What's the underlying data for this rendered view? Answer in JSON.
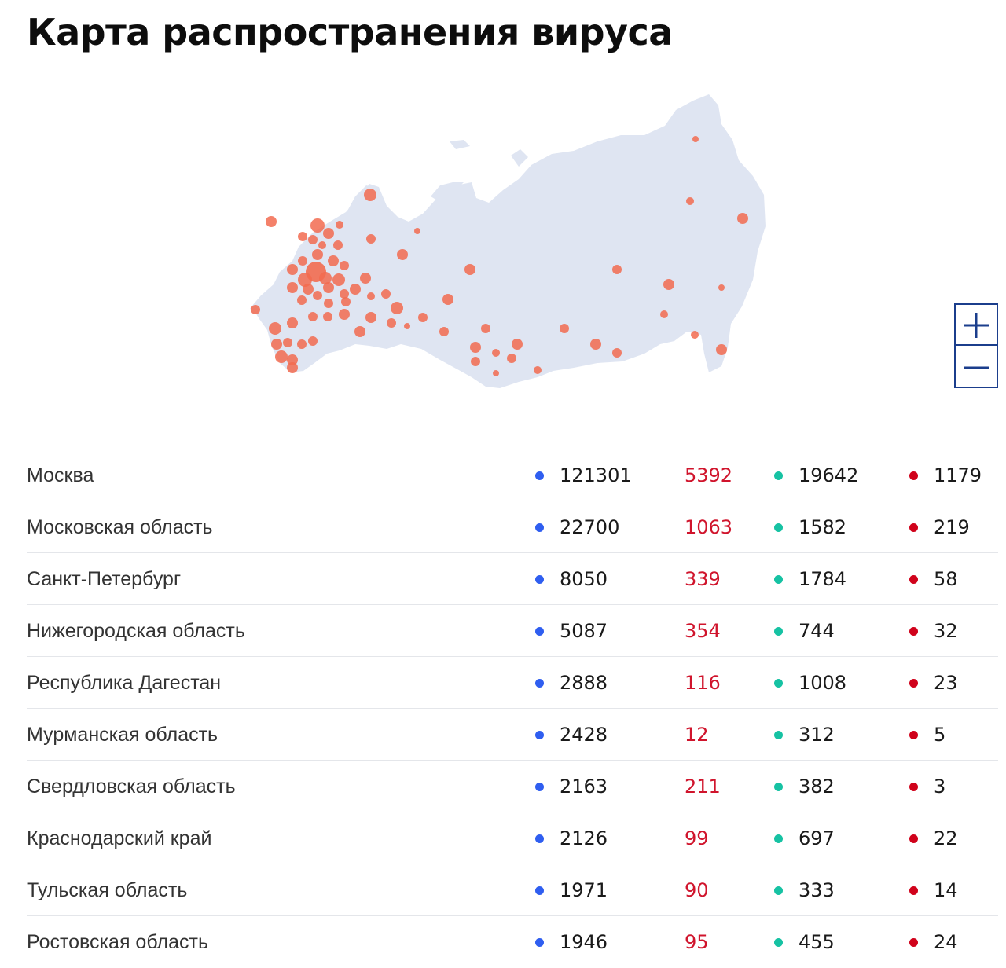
{
  "page": {
    "title": "Карта распространения вируса"
  },
  "colors": {
    "confirmed": "#2f5ef0",
    "new_cases": "#d0142c",
    "recovered": "#16c2a3",
    "deaths": "#d0021b",
    "map_land": "#dfe5f2",
    "map_marker": "#f26b50",
    "zoom_border": "#1b3e8c"
  },
  "map": {
    "zoom_in_icon": "plus-icon",
    "zoom_out_icon": "minus-icon"
  },
  "regions": [
    {
      "name": "Москва",
      "confirmed": "121301",
      "new": "5392",
      "recovered": "19642",
      "deaths": "1179"
    },
    {
      "name": "Московская область",
      "confirmed": "22700",
      "new": "1063",
      "recovered": "1582",
      "deaths": "219"
    },
    {
      "name": "Санкт-Петербург",
      "confirmed": "8050",
      "new": "339",
      "recovered": "1784",
      "deaths": "58"
    },
    {
      "name": "Нижегородская область",
      "confirmed": "5087",
      "new": "354",
      "recovered": "744",
      "deaths": "32"
    },
    {
      "name": "Республика Дагестан",
      "confirmed": "2888",
      "new": "116",
      "recovered": "1008",
      "deaths": "23"
    },
    {
      "name": "Мурманская область",
      "confirmed": "2428",
      "new": "12",
      "recovered": "312",
      "deaths": "5"
    },
    {
      "name": "Свердловская область",
      "confirmed": "2163",
      "new": "211",
      "recovered": "382",
      "deaths": "3"
    },
    {
      "name": "Краснодарский край",
      "confirmed": "2126",
      "new": "99",
      "recovered": "697",
      "deaths": "22"
    },
    {
      "name": "Тульская область",
      "confirmed": "1971",
      "new": "90",
      "recovered": "333",
      "deaths": "14"
    },
    {
      "name": "Ростовская область",
      "confirmed": "1946",
      "new": "95",
      "recovered": "455",
      "deaths": "24"
    }
  ]
}
